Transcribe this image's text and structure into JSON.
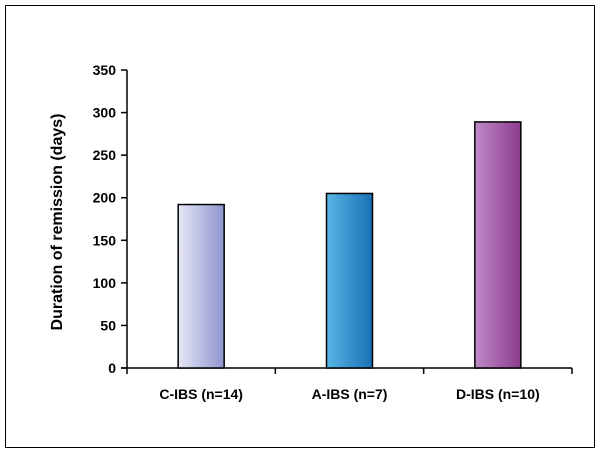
{
  "chart_data": {
    "type": "bar",
    "categories": [
      "C-IBS (n=14)",
      "A-IBS (n=7)",
      "D-IBS (n=10)"
    ],
    "values": [
      192,
      205,
      289
    ],
    "xlabel": "",
    "ylabel": "Duration of remission (days)",
    "ylim": [
      0,
      350
    ],
    "yticks": [
      0,
      50,
      100,
      150,
      200,
      250,
      300,
      350
    ],
    "grid": false,
    "legend": "none",
    "bar_colors": [
      {
        "light": "#e6e8f5",
        "dark": "#8e94ce"
      },
      {
        "light": "#58b6e6",
        "dark": "#1970b4"
      },
      {
        "light": "#c08ac8",
        "dark": "#8c3c8e"
      }
    ]
  }
}
